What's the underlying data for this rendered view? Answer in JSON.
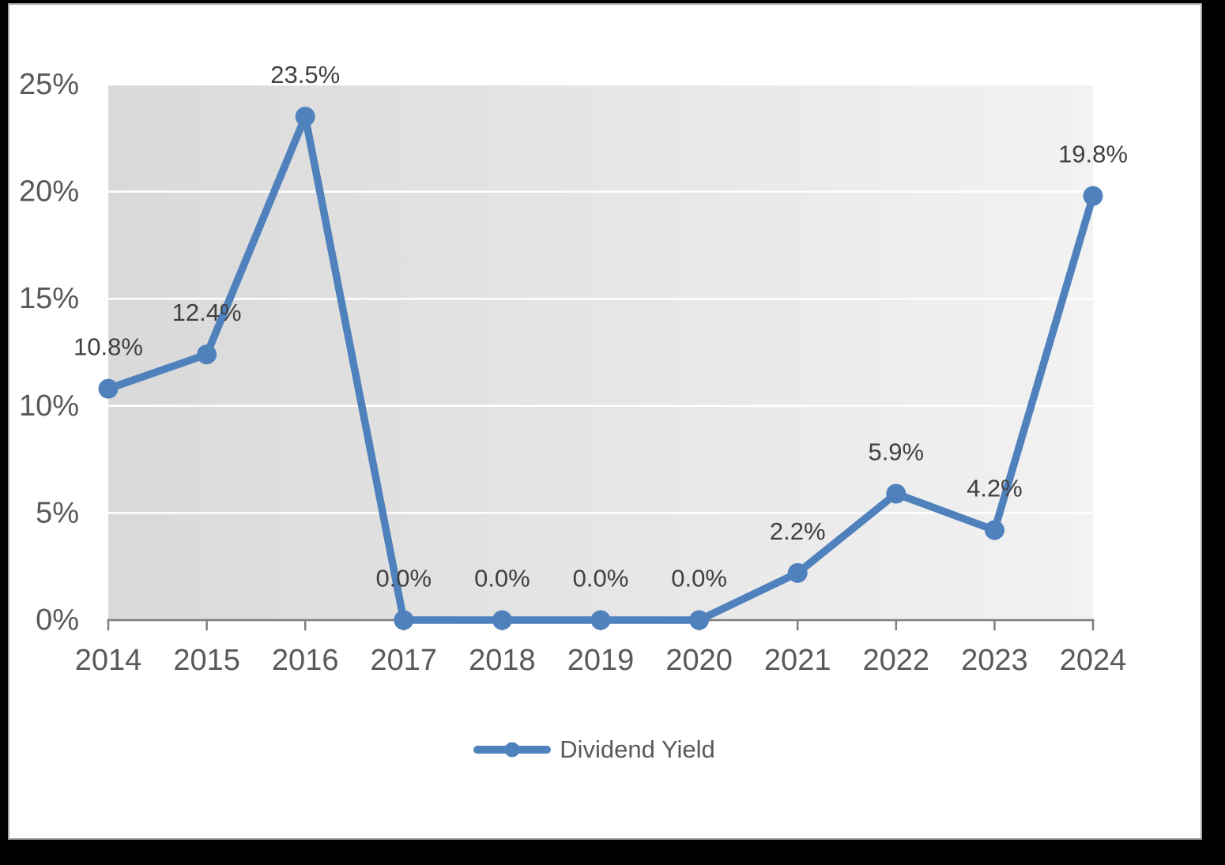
{
  "chart_data": {
    "type": "line",
    "title": "",
    "xlabel": "",
    "ylabel": "",
    "categories": [
      "2014",
      "2015",
      "2016",
      "2017",
      "2018",
      "2019",
      "2020",
      "2021",
      "2022",
      "2023",
      "2024"
    ],
    "series": [
      {
        "name": "Dividend Yield",
        "values": [
          10.8,
          12.4,
          23.5,
          0.0,
          0.0,
          0.0,
          0.0,
          2.2,
          5.9,
          4.2,
          19.8
        ],
        "labels": [
          "10.8%",
          "12.4%",
          "23.5%",
          "0.0%",
          "0.0%",
          "0.0%",
          "0.0%",
          "2.2%",
          "5.9%",
          "4.2%",
          "19.8%"
        ]
      }
    ],
    "ylim": [
      0,
      25
    ],
    "y_ticks": [
      {
        "value": 0,
        "label": "0%"
      },
      {
        "value": 5,
        "label": "5%"
      },
      {
        "value": 10,
        "label": "10%"
      },
      {
        "value": 15,
        "label": "15%"
      },
      {
        "value": 20,
        "label": "20%"
      },
      {
        "value": 25,
        "label": "25%"
      }
    ],
    "grid": true,
    "legend_position": "bottom",
    "colors": {
      "series_line": "#4F81BD",
      "marker_fill": "#4F81BD",
      "plot_bg_left": "#D9D9D9",
      "plot_bg_right": "#F2F2F2",
      "gridline": "#FFFFFF",
      "axis_line": "#7F7F7F",
      "axis_label": "#595959",
      "data_label": "#404040",
      "canvas_border": "#A6A6A6",
      "frame_background": "#000000"
    }
  },
  "legend": {
    "label": "Dividend Yield"
  }
}
